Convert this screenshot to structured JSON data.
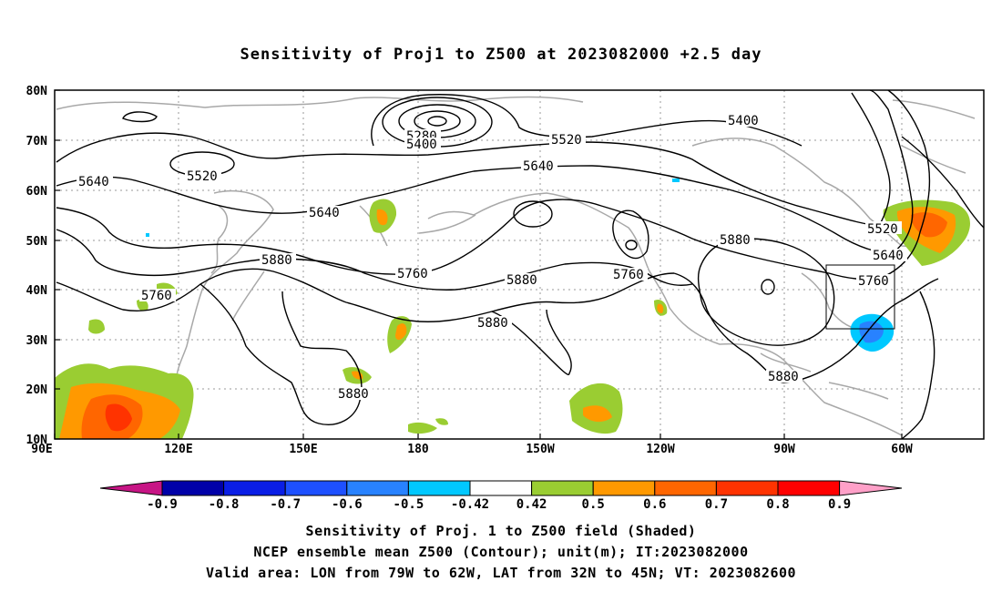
{
  "title": "Sensitivity of Proj1 to Z500 at 2023082000 +2.5 day",
  "captions": [
    "Sensitivity of Proj. 1 to Z500 field (Shaded)",
    "NCEP ensemble mean Z500 (Contour); unit(m); IT:2023082000",
    "Valid area: LON from 79W to 62W, LAT from 32N to 45N; VT: 2023082600"
  ],
  "map": {
    "lon_labels": [
      "90E",
      "120E",
      "150E",
      "180",
      "150W",
      "120W",
      "90W",
      "60W"
    ],
    "lat_labels": [
      "80N",
      "70N",
      "60N",
      "50N",
      "40N",
      "30N",
      "20N",
      "10N"
    ],
    "contour_labels": [
      "5280",
      "5400",
      "5400",
      "5520",
      "5520",
      "5520",
      "5640",
      "5640",
      "5640",
      "5640",
      "5760",
      "5760",
      "5760",
      "5760",
      "5880",
      "5880",
      "5880",
      "5880",
      "5880",
      "5880"
    ],
    "valid_area": {
      "lon_from": "79W",
      "lon_to": "62W",
      "lat_from": "32N",
      "lat_to": "45N"
    }
  },
  "colorbar": {
    "tick_labels": [
      "-0.9",
      "-0.8",
      "-0.7",
      "-0.6",
      "-0.5",
      "-0.42",
      "0.42",
      "0.5",
      "0.6",
      "0.7",
      "0.8",
      "0.9"
    ],
    "colors": [
      "#c71585",
      "#0000a8",
      "#0a1ee6",
      "#1e50ff",
      "#2882ff",
      "#00c8ff",
      "#ffffff",
      "#9acd32",
      "#ff9900",
      "#ff6600",
      "#ff3300",
      "#ff0000",
      "#ffa0c8"
    ]
  }
}
